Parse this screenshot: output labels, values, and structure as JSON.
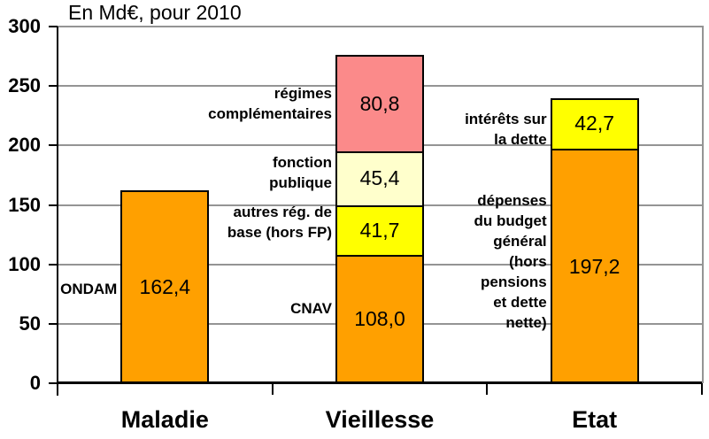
{
  "chart_data": {
    "type": "bar",
    "stacked": true,
    "title": "En Md€, pour 2010",
    "xlabel": "",
    "ylabel": "",
    "ylim": [
      0,
      300
    ],
    "grid": true,
    "yticks": [
      0,
      50,
      100,
      150,
      200,
      250,
      300
    ],
    "categories": [
      {
        "label": "Maladie",
        "segments": [
          {
            "name": "ondam",
            "value": 162.4,
            "value_label": "162,4",
            "color_key": "orange",
            "annotation": {
              "lines": [
                "ONDAM"
              ],
              "dy": 3
            }
          }
        ]
      },
      {
        "label": "Vieillesse",
        "segments": [
          {
            "name": "cnav",
            "value": 108.0,
            "value_label": "108,0",
            "color_key": "orange",
            "annotation": {
              "lines": [
                "CNAV"
              ],
              "dy": -12
            }
          },
          {
            "name": "autres-regimes-de-base",
            "value": 41.7,
            "value_label": "41,7",
            "color_key": "yellow",
            "annotation": {
              "lines": [
                "autres rég. de",
                "base (hors FP)"
              ],
              "dy": -9
            }
          },
          {
            "name": "fonction-publique",
            "value": 45.4,
            "value_label": "45,4",
            "color_key": "cream",
            "annotation": {
              "lines": [
                "fonction",
                "publique"
              ],
              "dy": -6
            }
          },
          {
            "name": "regimes-complementaires",
            "value": 80.8,
            "value_label": "80,8",
            "color_key": "pink",
            "annotation": {
              "lines": [
                "régimes",
                "complémentaires"
              ],
              "dy": 0
            }
          }
        ]
      },
      {
        "label": "Etat",
        "segments": [
          {
            "name": "depenses-budget-general",
            "value": 197.2,
            "value_label": "197,2",
            "color_key": "orange",
            "annotation": {
              "lines": [
                "dépenses",
                "du budget",
                "général",
                "(hors",
                "pensions",
                "et dette",
                "nette)"
              ],
              "dy": -5
            }
          },
          {
            "name": "interets-sur-la-dette",
            "value": 42.7,
            "value_label": "42,7",
            "color_key": "yellow",
            "annotation": {
              "lines": [
                "intérêts sur",
                "la dette"
              ],
              "dy": 7
            }
          }
        ]
      }
    ],
    "colors": {
      "orange": "#FFA000",
      "yellow": "#FFFF00",
      "cream": "#FFFFCC",
      "pink": "#FB8A8A",
      "gridline": "#949494",
      "axis": "#000000",
      "text": "#000000"
    },
    "legend": "none"
  }
}
